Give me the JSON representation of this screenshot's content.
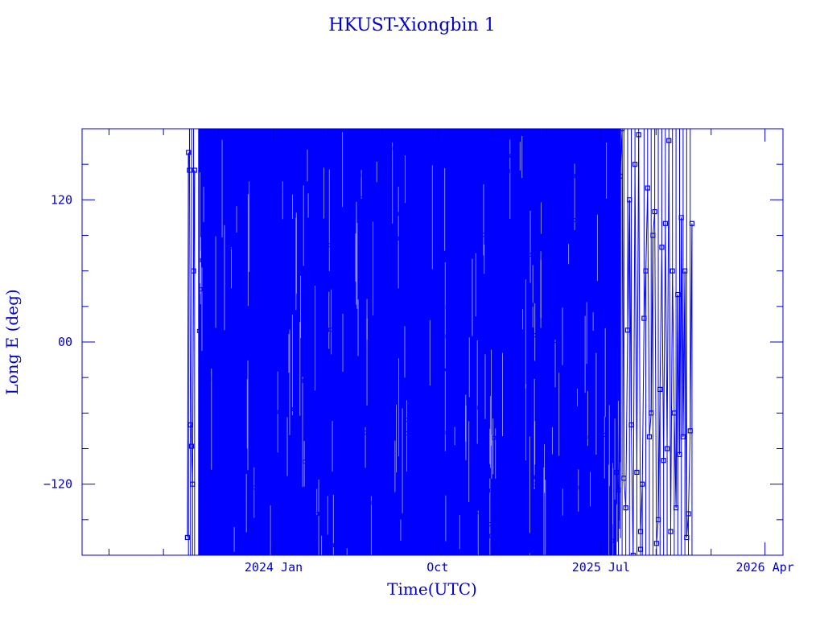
{
  "chart_data": {
    "type": "line",
    "title": "HKUST-Xiongbin 1",
    "xlabel": "Time(UTC)",
    "ylabel": "Long E (deg)",
    "x_ticks": [
      "2024 Jan",
      "Oct",
      "2025 Jul",
      "2026 Apr"
    ],
    "y_ticks": [
      "120",
      "00",
      "−120"
    ],
    "y_tick_values": [
      120,
      0,
      -120
    ],
    "xlim": [
      "2023-02-15",
      "2026-05-01"
    ],
    "ylim": [
      -180,
      180
    ],
    "grid": false,
    "color": "#0000ff",
    "series": [
      {
        "segments": [
          {
            "start": "2023-08-10",
            "end": "2023-08-22",
            "y": [
              -165,
              160,
              145,
              -70,
              -88,
              -120,
              60,
              145
            ]
          },
          {
            "start": "2023-08-28",
            "end": "2025-07-27",
            "density": "dense",
            "y_min": -180,
            "y_max": 180
          },
          {
            "start": "2025-07-27",
            "end": "2025-09-05",
            "y": [
              -110,
              -125,
              140,
              180,
              -115,
              -140,
              10,
              120,
              -70,
              -180,
              150,
              -110,
              175,
              -175
            ]
          },
          {
            "start": "2025-09-05",
            "end": "2025-11-30",
            "y": [
              -160,
              -120,
              20,
              60,
              130,
              -80,
              -60,
              90,
              110,
              -170,
              -150,
              -40,
              80,
              -100,
              100,
              -90,
              170,
              -160,
              60,
              -60,
              -140,
              40,
              -95,
              105,
              -80,
              60,
              -165,
              -145,
              -75,
              100
            ]
          }
        ]
      }
    ]
  }
}
